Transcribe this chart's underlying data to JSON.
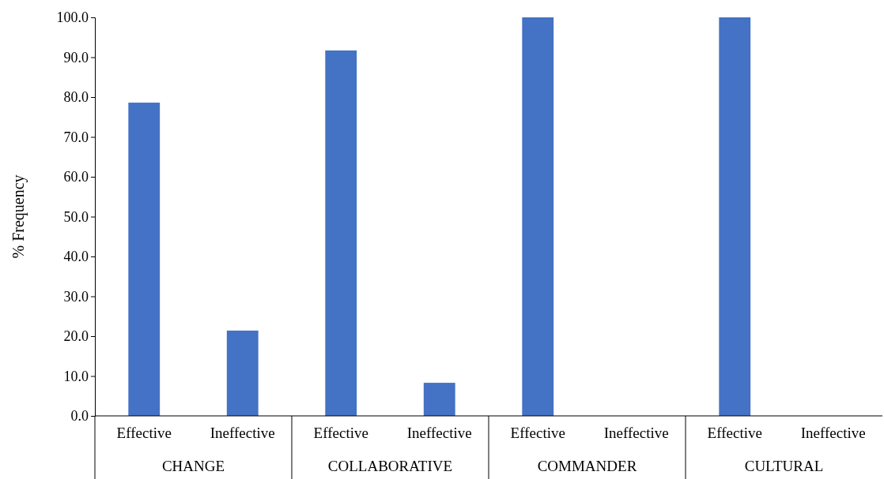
{
  "chart_data": {
    "type": "bar",
    "ylabel": "% Frequency",
    "categories": [
      "Effective",
      "Ineffective",
      "Effective",
      "Ineffective",
      "Effective",
      "Ineffective",
      "Effective",
      "Ineffective"
    ],
    "values": [
      78.6,
      21.4,
      91.7,
      8.3,
      100,
      0,
      100,
      0
    ],
    "color": "#4472c4",
    "ylim": [
      0,
      100
    ],
    "yticks": [
      {
        "value": 0,
        "label": "0.0"
      },
      {
        "value": 10,
        "label": "10.0"
      },
      {
        "value": 20,
        "label": "20.0"
      },
      {
        "value": 30,
        "label": "30.0"
      },
      {
        "value": 40,
        "label": "40.0"
      },
      {
        "value": 50,
        "label": "50.0"
      },
      {
        "value": 60,
        "label": "60.0"
      },
      {
        "value": 70,
        "label": "70.0"
      },
      {
        "value": 80,
        "label": "80.0"
      },
      {
        "value": 90,
        "label": "90.0"
      },
      {
        "value": 100,
        "label": "100.0"
      }
    ],
    "annotations": [
      "CHANGE",
      "COLLABORATIVE",
      "COMMANDER",
      "CULTURAL"
    ],
    "grid": false
  }
}
